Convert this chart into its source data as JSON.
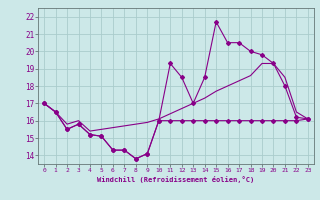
{
  "xlabel": "Windchill (Refroidissement éolien,°C)",
  "bg_color": "#cce8e8",
  "grid_color": "#aacccc",
  "line_color": "#880088",
  "xlim": [
    -0.5,
    23.5
  ],
  "ylim": [
    13.5,
    22.5
  ],
  "yticks": [
    14,
    15,
    16,
    17,
    18,
    19,
    20,
    21,
    22
  ],
  "xticks": [
    0,
    1,
    2,
    3,
    4,
    5,
    6,
    7,
    8,
    9,
    10,
    11,
    12,
    13,
    14,
    15,
    16,
    17,
    18,
    19,
    20,
    21,
    22,
    23
  ],
  "series1_x": [
    0,
    1,
    2,
    3,
    4,
    5,
    6,
    7,
    8,
    9,
    10,
    11,
    12,
    13,
    14,
    15,
    16,
    17,
    18,
    19,
    20,
    21,
    22,
    23
  ],
  "series1_y": [
    17.0,
    16.5,
    15.5,
    15.8,
    15.2,
    15.1,
    14.3,
    14.3,
    13.8,
    14.1,
    16.0,
    16.0,
    16.0,
    16.0,
    16.0,
    16.0,
    16.0,
    16.0,
    16.0,
    16.0,
    16.0,
    16.0,
    16.0,
    16.1
  ],
  "series2_x": [
    0,
    1,
    2,
    3,
    4,
    5,
    6,
    7,
    8,
    9,
    10,
    11,
    12,
    13,
    14,
    15,
    16,
    17,
    18,
    19,
    20,
    21,
    22,
    23
  ],
  "series2_y": [
    17.0,
    16.5,
    15.5,
    15.8,
    15.2,
    15.1,
    14.3,
    14.3,
    13.8,
    14.1,
    16.0,
    19.3,
    18.5,
    17.0,
    18.5,
    21.7,
    20.5,
    20.5,
    20.0,
    19.8,
    19.3,
    18.0,
    16.2,
    16.1
  ],
  "series3_x": [
    0,
    1,
    2,
    3,
    4,
    5,
    6,
    7,
    8,
    9,
    10,
    11,
    12,
    13,
    14,
    15,
    16,
    17,
    18,
    19,
    20,
    21,
    22,
    23
  ],
  "series3_y": [
    17.0,
    16.5,
    15.8,
    16.0,
    15.4,
    15.5,
    15.6,
    15.7,
    15.8,
    15.9,
    16.1,
    16.4,
    16.7,
    17.0,
    17.3,
    17.7,
    18.0,
    18.3,
    18.6,
    19.3,
    19.3,
    18.5,
    16.5,
    16.1
  ]
}
